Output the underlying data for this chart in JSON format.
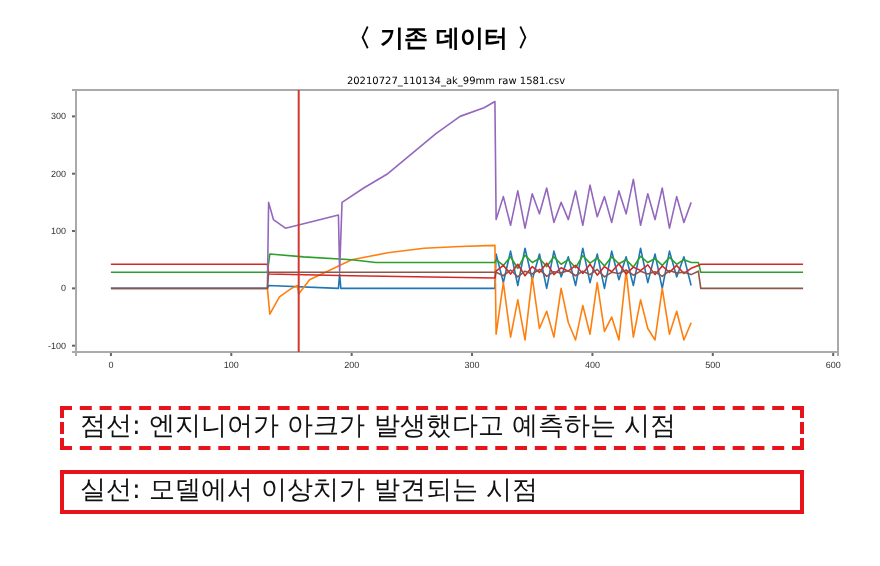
{
  "chart_data": {
    "type": "line",
    "title": "〈 기존 데이터 〉",
    "subtitle": "20210727_110134_ak_99mm raw 1581.csv",
    "xlim": [
      -29,
      604
    ],
    "xticks": [
      0,
      100,
      200,
      300,
      400,
      500,
      600
    ],
    "ylim": [
      -111,
      346
    ],
    "yticks": [
      -100,
      0,
      100,
      200,
      300
    ],
    "line_style": "solid",
    "ref_lines": [
      {
        "axis": "x",
        "value": 156,
        "color": "#d03a2f",
        "line_style": "solid"
      }
    ],
    "annotations": [
      "점선: 엔지니어가 아크가 발생했다고 예측하는 시점",
      "실선: 모델에서 이상치가 발견되는 시점"
    ],
    "series": [
      {
        "color": "#1f77b4",
        "x": [
          0,
          130,
          131,
          189,
          190,
          191,
          319,
          320,
          326,
          332,
          338,
          344,
          350,
          356,
          362,
          368,
          374,
          380,
          386,
          392,
          398,
          404,
          410,
          416,
          422,
          428,
          434,
          440,
          446,
          452,
          458,
          464,
          470,
          476,
          482
        ],
        "values": [
          0,
          0,
          5,
          0,
          25,
          0,
          0,
          60,
          10,
          65,
          5,
          70,
          15,
          60,
          0,
          65,
          20,
          55,
          5,
          70,
          10,
          60,
          0,
          65,
          15,
          55,
          5,
          70,
          10,
          60,
          0,
          65,
          20,
          55,
          5
        ]
      },
      {
        "color": "#ff7f0e",
        "x": [
          130,
          132,
          140,
          150,
          155,
          156,
          165,
          180,
          200,
          230,
          260,
          290,
          319,
          320,
          326,
          332,
          338,
          344,
          350,
          356,
          362,
          368,
          374,
          380,
          386,
          392,
          398,
          404,
          410,
          416,
          422,
          428,
          434,
          440,
          446,
          452,
          458,
          464,
          470,
          476,
          482
        ],
        "values": [
          0,
          -45,
          -15,
          0,
          5,
          -10,
          15,
          30,
          50,
          62,
          70,
          73,
          75,
          -80,
          10,
          -85,
          -20,
          -90,
          20,
          -70,
          -40,
          -85,
          0,
          -60,
          -90,
          -30,
          -80,
          10,
          -75,
          -50,
          -90,
          30,
          -85,
          -20,
          -70,
          -90,
          0,
          -80,
          -40,
          -90,
          -60
        ]
      },
      {
        "color": "#2ca02c",
        "x": [
          0,
          130,
          132,
          160,
          200,
          220,
          319,
          320,
          326,
          332,
          338,
          344,
          350,
          356,
          362,
          368,
          374,
          380,
          386,
          392,
          398,
          404,
          410,
          416,
          422,
          428,
          434,
          440,
          446,
          452,
          458,
          464,
          470,
          476,
          482,
          488,
          490,
          575
        ],
        "values": [
          28,
          28,
          60,
          55,
          50,
          45,
          45,
          50,
          40,
          55,
          35,
          58,
          45,
          52,
          38,
          55,
          42,
          50,
          36,
          57,
          44,
          53,
          39,
          55,
          43,
          50,
          37,
          56,
          45,
          52,
          40,
          54,
          42,
          50,
          45,
          45,
          28,
          28
        ]
      },
      {
        "color": "#d62728",
        "x": [
          0,
          130,
          131,
          200,
          319,
          320,
          326,
          332,
          338,
          344,
          350,
          356,
          362,
          368,
          374,
          380,
          386,
          392,
          398,
          404,
          410,
          416,
          422,
          428,
          434,
          440,
          446,
          452,
          458,
          464,
          470,
          476,
          482,
          488,
          490,
          575
        ],
        "values": [
          42,
          42,
          25,
          22,
          18,
          30,
          40,
          25,
          42,
          22,
          38,
          28,
          44,
          24,
          36,
          30,
          40,
          26,
          42,
          23,
          38,
          29,
          43,
          25,
          37,
          31,
          41,
          24,
          39,
          28,
          40,
          26,
          35,
          40,
          42,
          42
        ]
      },
      {
        "color": "#9467bd",
        "x": [
          130,
          131,
          135,
          145,
          155,
          170,
          189,
          190,
          192,
          210,
          230,
          250,
          270,
          290,
          310,
          319,
          320,
          326,
          332,
          338,
          344,
          350,
          356,
          362,
          368,
          374,
          380,
          386,
          392,
          398,
          404,
          410,
          416,
          422,
          428,
          434,
          440,
          446,
          452,
          458,
          464,
          470,
          476,
          482
        ],
        "values": [
          0,
          150,
          120,
          105,
          110,
          118,
          128,
          30,
          150,
          175,
          200,
          235,
          270,
          300,
          315,
          326,
          120,
          160,
          110,
          170,
          105,
          165,
          130,
          175,
          115,
          150,
          120,
          170,
          110,
          180,
          125,
          160,
          115,
          170,
          130,
          190,
          110,
          165,
          120,
          175,
          105,
          160,
          115,
          150
        ]
      },
      {
        "color": "#8c564b",
        "x": [
          0,
          130,
          131,
          319,
          320,
          326,
          332,
          338,
          344,
          350,
          356,
          362,
          368,
          374,
          380,
          386,
          392,
          398,
          404,
          410,
          416,
          422,
          428,
          434,
          440,
          446,
          452,
          458,
          464,
          470,
          476,
          482,
          488,
          490,
          575
        ],
        "values": [
          0,
          0,
          28,
          28,
          28,
          22,
          32,
          20,
          30,
          25,
          33,
          21,
          29,
          27,
          31,
          22,
          30,
          24,
          33,
          20,
          28,
          26,
          32,
          23,
          30,
          25,
          29,
          21,
          31,
          27,
          28,
          24,
          30,
          0,
          0
        ]
      }
    ]
  }
}
